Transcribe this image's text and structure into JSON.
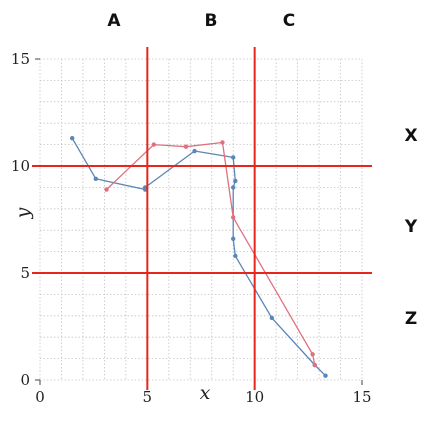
{
  "chart_data": {
    "type": "line",
    "title": "",
    "xlabel": "x",
    "ylabel": "y",
    "xlim": [
      0,
      15
    ],
    "ylim": [
      0,
      15
    ],
    "x_ticks": [
      0,
      5,
      10,
      15
    ],
    "y_ticks": [
      0,
      5,
      10,
      15
    ],
    "grid": true,
    "series": [
      {
        "color": "#5b86b5",
        "points": [
          [
            1.5,
            11.3
          ],
          [
            2.6,
            9.4
          ],
          [
            4.9,
            8.9
          ],
          [
            4.9,
            9.0
          ],
          [
            7.2,
            10.7
          ],
          [
            9.0,
            10.4
          ],
          [
            9.1,
            9.3
          ],
          [
            9.0,
            9.0
          ],
          [
            9.0,
            6.6
          ],
          [
            9.1,
            5.8
          ],
          [
            10.8,
            2.9
          ],
          [
            12.8,
            0.7
          ],
          [
            13.3,
            0.2
          ]
        ]
      },
      {
        "color": "#e0707f",
        "points": [
          [
            3.1,
            8.9
          ],
          [
            5.3,
            11.0
          ],
          [
            6.8,
            10.9
          ],
          [
            8.5,
            11.1
          ],
          [
            9.0,
            7.6
          ],
          [
            12.7,
            1.2
          ],
          [
            12.8,
            0.7
          ]
        ]
      }
    ],
    "reference_lines": {
      "color": "#e8251a",
      "vertical": [
        5,
        10
      ],
      "horizontal": [
        5,
        10
      ]
    },
    "column_labels": [
      "A",
      "B",
      "C"
    ],
    "row_labels": [
      "X",
      "Y",
      "Z"
    ]
  }
}
